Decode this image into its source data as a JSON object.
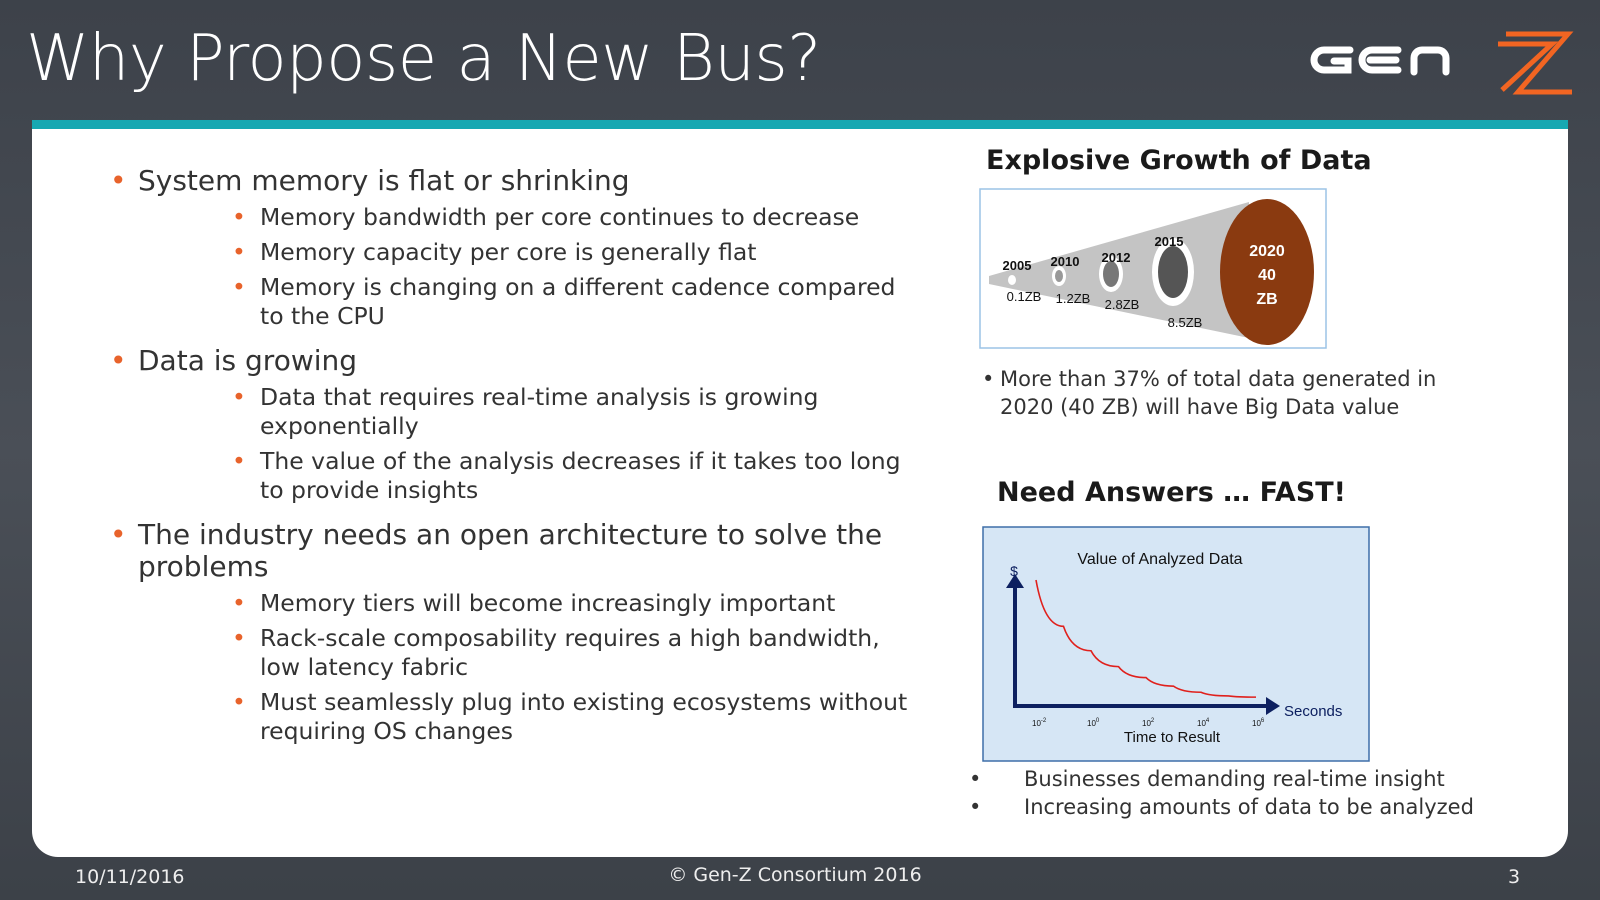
{
  "title": "Why Propose a New Bus?",
  "logo": {
    "text": "GEN Z",
    "accent": "#f26522"
  },
  "colors": {
    "accent_bar": "#16a8b2",
    "bullet": "#e8632b",
    "bubble_2020": "#8a3a10",
    "chart_bg": "#d6e6f5",
    "curve": "#e0201c",
    "axis": "#0d2060"
  },
  "bullets": [
    {
      "text": "System memory is flat or shrinking",
      "children": [
        "Memory bandwidth per core continues to decrease",
        "Memory capacity per core is generally flat",
        "Memory is changing on a different cadence compared to the CPU"
      ]
    },
    {
      "text": "Data is growing",
      "children": [
        "Data that requires real-time analysis is growing exponentially",
        "The value of the analysis decreases if it takes too long to provide insights"
      ]
    },
    {
      "text": "The industry needs an open architecture to solve the problems",
      "children": [
        "Memory tiers will become increasingly important",
        "Rack-scale composability requires a high bandwidth, low latency fabric",
        "Must seamlessly plug into existing ecosystems without requiring OS changes"
      ]
    }
  ],
  "growth": {
    "heading": "Explosive Growth of Data",
    "points": [
      {
        "year": "2005",
        "size": "0.1ZB"
      },
      {
        "year": "2010",
        "size": "1.2ZB"
      },
      {
        "year": "2012",
        "size": "2.8ZB"
      },
      {
        "year": "2015",
        "size": "8.5ZB"
      },
      {
        "year": "2020",
        "size": "40",
        "unit": "ZB"
      }
    ],
    "note": "More than 37% of total data generated in 2020 (40 ZB) will have Big Data value"
  },
  "fast": {
    "heading": "Need Answers … FAST!",
    "notes": [
      "Businesses demanding real-time insight",
      "Increasing amounts of data to be analyzed"
    ]
  },
  "chart_data": {
    "type": "line",
    "title": "Value of Analyzed Data",
    "ylabel": "$",
    "xlabel": "Time to Result",
    "xunit": "Seconds",
    "xscale": "log",
    "xticks": [
      "10-2",
      "100",
      "102",
      "104",
      "106"
    ],
    "tick_base": [
      "10",
      "10",
      "10",
      "10",
      "10"
    ],
    "tick_exp": [
      "-2",
      "0",
      "2",
      "4",
      "6"
    ],
    "grid": false,
    "series": [
      {
        "x": [
          0.01,
          0.1,
          1,
          10,
          100,
          1000,
          10000,
          100000,
          1000000
        ],
        "y": [
          1.0,
          0.62,
          0.42,
          0.29,
          0.2,
          0.13,
          0.08,
          0.05,
          0.04
        ]
      }
    ]
  },
  "footer": {
    "date": "10/11/2016",
    "copyright": "© Gen-Z Consortium 2016",
    "page": "3"
  }
}
